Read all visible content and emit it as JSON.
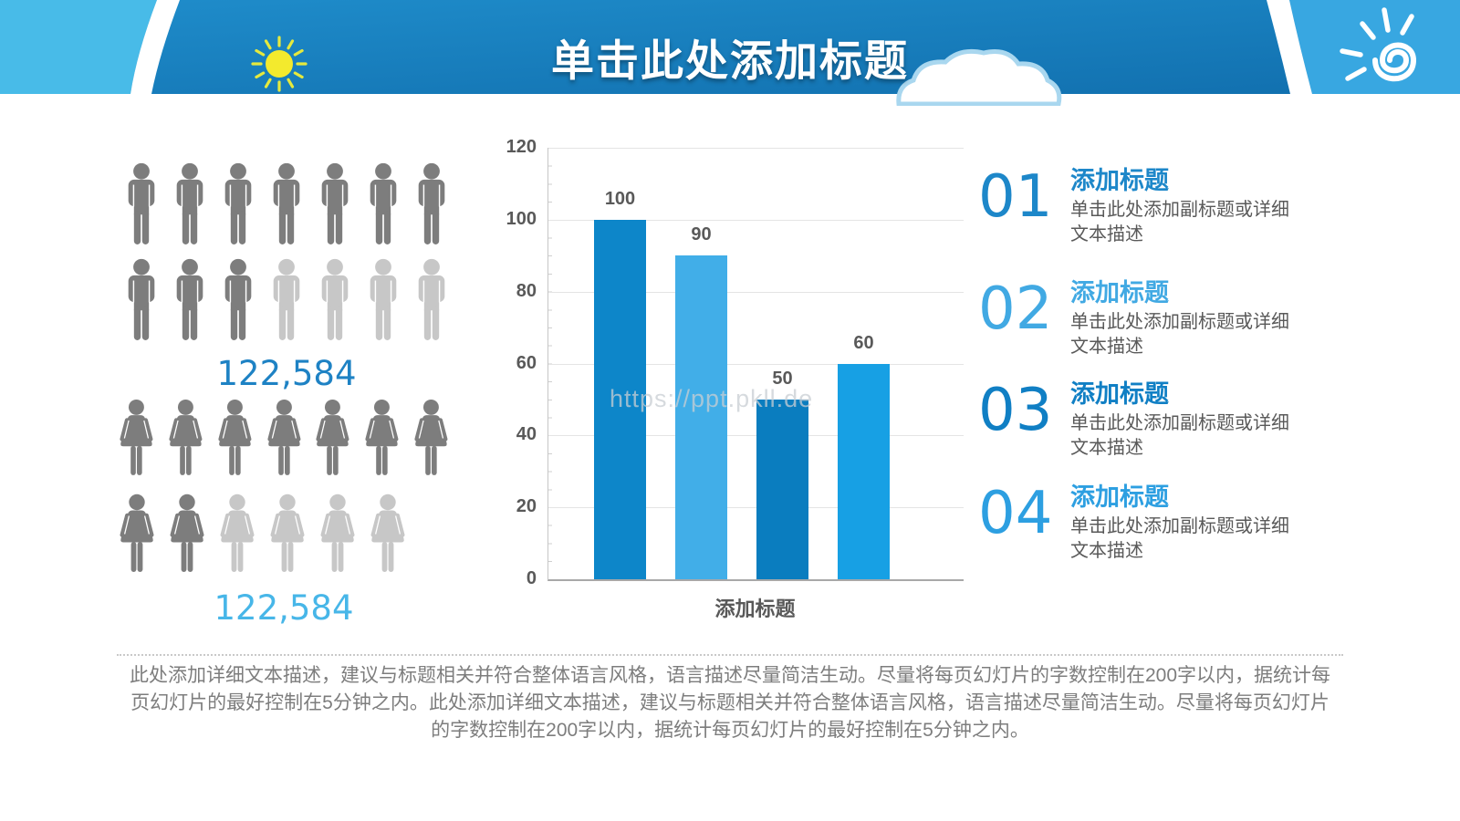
{
  "header": {
    "title": "单击此处添加标题",
    "band_color_top": "#1f8dcb",
    "band_color_bottom": "#116fae",
    "corner_left_color": "#48bbe8",
    "corner_right_color": "#38a7e1",
    "title_color": "#ffffff"
  },
  "pictograph": {
    "dark_color": "#7d7d7d",
    "light_color": "#c7c7c7",
    "male": {
      "rows": [
        [
          "d",
          "d",
          "d",
          "d",
          "d",
          "d",
          "d"
        ],
        [
          "d",
          "d",
          "d",
          "l",
          "l",
          "l",
          "l"
        ]
      ],
      "label": "122,584",
      "label_color": "#1e82c4"
    },
    "female": {
      "rows": [
        [
          "d",
          "d",
          "d",
          "d",
          "d",
          "d",
          "d"
        ],
        [
          "d",
          "d",
          "l",
          "l",
          "l",
          "l"
        ]
      ],
      "label": "122,584",
      "label_color": "#47b6e8"
    }
  },
  "chart_data": [
    {
      "type": "pictograph",
      "series": [
        {
          "name": "male",
          "value_label": "122,584",
          "icons_total": 14,
          "icons_highlighted": 10
        },
        {
          "name": "female",
          "value_label": "122,584",
          "icons_total": 13,
          "icons_highlighted": 9
        }
      ]
    },
    {
      "type": "bar",
      "categories": [
        "",
        "",
        "",
        ""
      ],
      "values": [
        100,
        90,
        50,
        60
      ],
      "bar_colors": [
        "#0d86c9",
        "#41aee8",
        "#0a7dbf",
        "#17a0e4"
      ],
      "title": "",
      "xlabel": "添加标题",
      "ylabel": "",
      "ylim": [
        0,
        120
      ],
      "yticks": [
        0,
        20,
        40,
        60,
        80,
        100,
        120
      ],
      "grid": true,
      "legend": false
    }
  ],
  "watermark": {
    "text": "https://ppt.pkll.de"
  },
  "list": {
    "items": [
      {
        "number": "01",
        "title": "添加标题",
        "description": "单击此处添加副标题或详细文本描述",
        "accent": "#1d87c9"
      },
      {
        "number": "02",
        "title": "添加标题",
        "description": "单击此处添加副标题或详细文本描述",
        "accent": "#41a9e3"
      },
      {
        "number": "03",
        "title": "添加标题",
        "description": "单击此处添加副标题或详细文本描述",
        "accent": "#107fc4"
      },
      {
        "number": "04",
        "title": "添加标题",
        "description": "单击此处添加副标题或详细文本描述",
        "accent": "#2d9fe1"
      }
    ]
  },
  "footer": {
    "text": "此处添加详细文本描述，建议与标题相关并符合整体语言风格，语言描述尽量简洁生动。尽量将每页幻灯片的字数控制在200字以内，据统计每页幻灯片的最好控制在5分钟之内。此处添加详细文本描述，建议与标题相关并符合整体语言风格，语言描述尽量简洁生动。尽量将每页幻灯片的字数控制在200字以内，据统计每页幻灯片的最好控制在5分钟之内。"
  }
}
